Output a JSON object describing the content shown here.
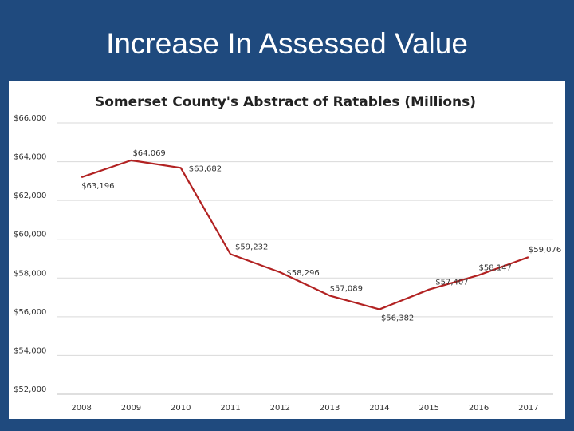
{
  "slide": {
    "title": "Increase In Assessed Value"
  },
  "colors": {
    "background": "#1f4a7e",
    "series_line": "#b22222",
    "gridline": "#d9d9d9"
  },
  "chart_data": {
    "type": "line",
    "title": "Somerset County's Abstract of Ratables (Millions)",
    "xlabel": "",
    "ylabel": "",
    "categories": [
      "2008",
      "2009",
      "2010",
      "2011",
      "2012",
      "2013",
      "2014",
      "2015",
      "2016",
      "2017"
    ],
    "series": [
      {
        "name": "Abstract of Ratables",
        "values": [
          63196,
          64069,
          63682,
          59232,
          58296,
          57089,
          56382,
          57407,
          58147,
          59076
        ],
        "labels": [
          "$63,196",
          "$64,069",
          "$63,682",
          "$59,232",
          "$58,296",
          "$57,089",
          "$56,382",
          "$57,407",
          "$58,147",
          "$59,076"
        ]
      }
    ],
    "ylim": [
      52000,
      66000
    ],
    "yticks": [
      52000,
      54000,
      56000,
      58000,
      60000,
      62000,
      64000,
      66000
    ],
    "ytick_labels": [
      "$52,000",
      "$54,000",
      "$56,000",
      "$58,000",
      "$60,000",
      "$62,000",
      "$64,000",
      "$66,000"
    ],
    "grid": true,
    "legend": "none"
  }
}
